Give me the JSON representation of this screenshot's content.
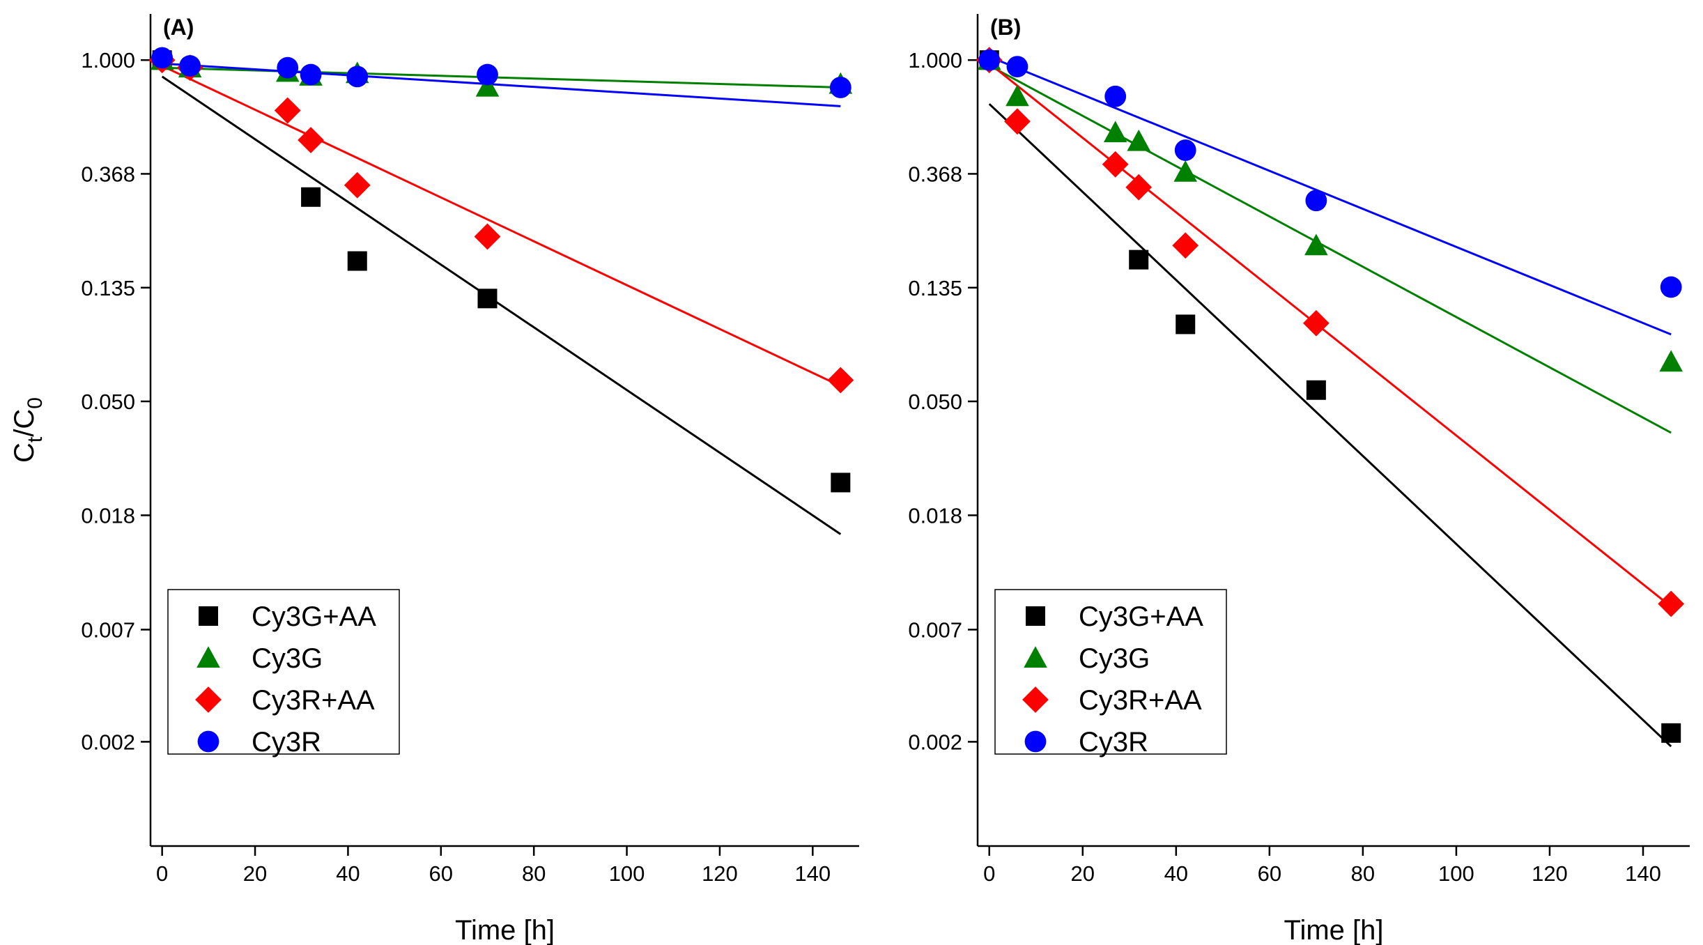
{
  "chart_data": [
    {
      "type": "scatter",
      "panel_label": "(A)",
      "x_label": "Time [h]",
      "y_label": [
        "C",
        "t",
        "/C",
        "0"
      ],
      "log_y": true,
      "legend": "lower left",
      "xlim": [
        -2.5,
        150
      ],
      "xticks": [
        0,
        20,
        40,
        60,
        80,
        100,
        120,
        140
      ],
      "ylim": [
        0.001,
        1.5
      ],
      "yticks": [
        {
          "value": 1,
          "label": "1.000"
        },
        {
          "value": 0.3679,
          "label": "0.368"
        },
        {
          "value": 0.1353,
          "label": "0.135"
        },
        {
          "value": 0.0498,
          "label": "0.050"
        },
        {
          "value": 0.0183,
          "label": "0.018"
        },
        {
          "value": 0.0067,
          "label": "0.007"
        },
        {
          "value": 0.0025,
          "label": "0.002"
        }
      ],
      "series": [
        {
          "name": "Cy3G+AA",
          "color": "#000000",
          "marker": "square",
          "x": [
            0,
            32,
            42,
            70,
            146
          ],
          "values": [
            1.0,
            0.3,
            0.171,
            0.123,
            0.0244
          ],
          "fit": {
            "x": [
              0,
              146
            ],
            "values": [
              0.865,
              0.0155
            ]
          }
        },
        {
          "name": "Cy3G",
          "color": "#008000",
          "marker": "triangle",
          "x": [
            0,
            6,
            27,
            32,
            42,
            70,
            146
          ],
          "values": [
            1.0,
            0.935,
            0.9,
            0.87,
            0.89,
            0.79,
            0.81
          ],
          "fit": {
            "x": [
              0,
              146
            ],
            "values": [
              0.935,
              0.786
            ]
          }
        },
        {
          "name": "Cy3R+AA",
          "color": "#ff0000",
          "marker": "diamond",
          "x": [
            0,
            6,
            27,
            32,
            42,
            70,
            146
          ],
          "values": [
            1.0,
            0.935,
            0.642,
            0.495,
            0.333,
            0.212,
            0.06
          ],
          "fit": {
            "x": [
              0,
              146
            ],
            "values": [
              0.95,
              0.057
            ]
          }
        },
        {
          "name": "Cy3R",
          "color": "#0000ff",
          "marker": "circle",
          "x": [
            0,
            6,
            27,
            32,
            42,
            70,
            146
          ],
          "values": [
            1.02,
            0.95,
            0.935,
            0.88,
            0.865,
            0.88,
            0.786
          ],
          "fit": {
            "x": [
              0,
              146
            ],
            "values": [
              0.97,
              0.667
            ]
          }
        }
      ]
    },
    {
      "type": "scatter",
      "panel_label": "(B)",
      "x_label": "Time [h]",
      "log_y": true,
      "legend": "lower left",
      "xlim": [
        -2.5,
        150
      ],
      "xticks": [
        0,
        20,
        40,
        60,
        80,
        100,
        120,
        140
      ],
      "ylim": [
        0.001,
        1.5
      ],
      "yticks": [
        {
          "value": 1,
          "label": "1.000"
        },
        {
          "value": 0.3679,
          "label": "0.368"
        },
        {
          "value": 0.1353,
          "label": "0.135"
        },
        {
          "value": 0.0498,
          "label": "0.050"
        },
        {
          "value": 0.0183,
          "label": "0.018"
        },
        {
          "value": 0.0067,
          "label": "0.007"
        },
        {
          "value": 0.0025,
          "label": "0.002"
        }
      ],
      "series": [
        {
          "name": "Cy3G+AA",
          "color": "#000000",
          "marker": "square",
          "x": [
            0,
            32,
            42,
            70,
            146
          ],
          "values": [
            1.0,
            0.173,
            0.098,
            0.055,
            0.0027
          ],
          "fit": {
            "x": [
              0,
              146
            ],
            "values": [
              0.68,
              0.0024
            ]
          }
        },
        {
          "name": "Cy3G",
          "color": "#008000",
          "marker": "triangle",
          "x": [
            0,
            6,
            27,
            32,
            42,
            70,
            146
          ],
          "values": [
            1.0,
            0.727,
            0.529,
            0.49,
            0.374,
            0.196,
            0.0705
          ],
          "fit": {
            "x": [
              0,
              146
            ],
            "values": [
              0.953,
              0.0378
            ]
          }
        },
        {
          "name": "Cy3R+AA",
          "color": "#ff0000",
          "marker": "diamond",
          "x": [
            0,
            6,
            27,
            32,
            42,
            70,
            146
          ],
          "values": [
            1.0,
            0.583,
            0.4,
            0.327,
            0.196,
            0.099,
            0.0084
          ],
          "fit": {
            "x": [
              0,
              146
            ],
            "values": [
              0.971,
              0.0082
            ]
          }
        },
        {
          "name": "Cy3R",
          "color": "#0000ff",
          "marker": "circle",
          "x": [
            0,
            6,
            27,
            42,
            70,
            146
          ],
          "values": [
            1.0,
            0.944,
            0.727,
            0.453,
            0.291,
            0.136
          ],
          "fit": {
            "x": [
              0,
              146
            ],
            "values": [
              1.03,
              0.0897
            ]
          }
        }
      ]
    }
  ]
}
